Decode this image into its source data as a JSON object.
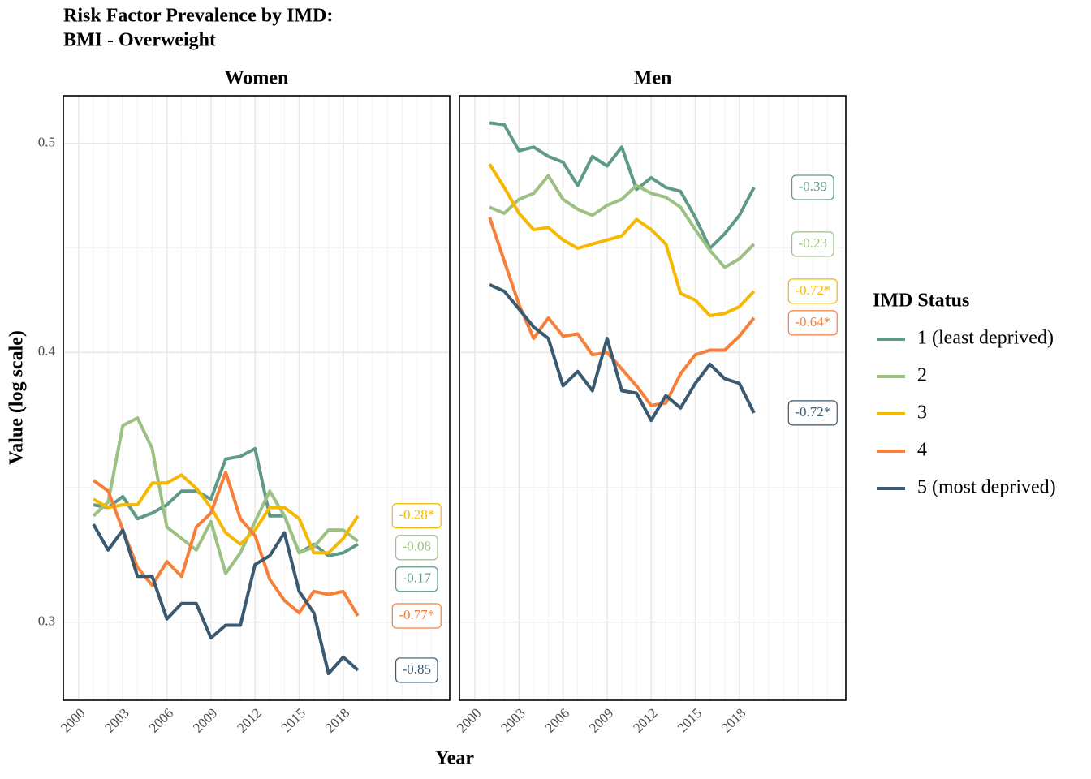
{
  "chart_data": {
    "type": "line",
    "title": "Risk Factor Prevalence by IMD:",
    "subtitle": "BMI - Overweight",
    "x_label": "Year",
    "y_label": "Value (log scale)",
    "facets": [
      "Women",
      "Men"
    ],
    "x": [
      2001,
      2002,
      2003,
      2004,
      2005,
      2006,
      2007,
      2008,
      2009,
      2010,
      2011,
      2012,
      2013,
      2014,
      2015,
      2016,
      2017,
      2018,
      2019
    ],
    "xlim": [
      1998.95,
      2025.25
    ],
    "xticks": [
      2000,
      2003,
      2006,
      2009,
      2012,
      2015,
      2018
    ],
    "ylim": [
      0.276,
      0.526
    ],
    "yticks": [
      0.3,
      0.4,
      0.5
    ],
    "log_y": true,
    "grid": true,
    "legend_title": "IMD Status",
    "legend_position": "right",
    "series": [
      {
        "name": "1 (least deprived)",
        "color": "#5f9a87",
        "values": [
          [
            0.34,
            0.339,
            0.343,
            0.335,
            0.337,
            0.34,
            0.345,
            0.345,
            0.342,
            0.357,
            0.358,
            0.361,
            0.336,
            0.336,
            0.323,
            0.326,
            0.322,
            0.323,
            0.326
          ],
          [
            0.511,
            0.51,
            0.496,
            0.498,
            0.493,
            0.49,
            0.478,
            0.493,
            0.488,
            0.498,
            0.476,
            0.482,
            0.477,
            0.475,
            0.462,
            0.447,
            0.454,
            0.463,
            0.477
          ]
        ],
        "annotations": [
          "-0.17",
          "-0.39"
        ]
      },
      {
        "name": "2",
        "color": "#9dc183",
        "values": [
          [
            0.336,
            0.341,
            0.37,
            0.373,
            0.361,
            0.332,
            0.328,
            0.324,
            0.334,
            0.316,
            0.323,
            0.334,
            0.345,
            0.336,
            0.323,
            0.325,
            0.331,
            0.331,
            0.327
          ],
          [
            0.467,
            0.464,
            0.471,
            0.474,
            0.483,
            0.471,
            0.466,
            0.463,
            0.468,
            0.471,
            0.478,
            0.474,
            0.472,
            0.467,
            0.456,
            0.446,
            0.438,
            0.442,
            0.449
          ]
        ],
        "annotations": [
          "-0.08",
          "-0.23"
        ]
      },
      {
        "name": "3",
        "color": "#f6b800",
        "values": [
          [
            0.342,
            0.339,
            0.34,
            0.34,
            0.348,
            0.348,
            0.351,
            0.346,
            0.339,
            0.33,
            0.326,
            0.331,
            0.339,
            0.339,
            0.335,
            0.323,
            0.323,
            0.328,
            0.336
          ],
          [
            0.489,
            0.477,
            0.464,
            0.456,
            0.457,
            0.451,
            0.447,
            0.449,
            0.451,
            0.453,
            0.461,
            0.456,
            0.449,
            0.426,
            0.423,
            0.416,
            0.417,
            0.42,
            0.427
          ]
        ],
        "annotations": [
          "-0.28*",
          "-0.72*"
        ]
      },
      {
        "name": "4",
        "color": "#f6803a",
        "values": [
          [
            0.349,
            0.345,
            0.331,
            0.318,
            0.312,
            0.32,
            0.315,
            0.332,
            0.337,
            0.352,
            0.335,
            0.329,
            0.314,
            0.307,
            0.303,
            0.31,
            0.309,
            0.31,
            0.302
          ],
          [
            0.462,
            0.441,
            0.421,
            0.406,
            0.415,
            0.407,
            0.408,
            0.399,
            0.4,
            0.393,
            0.386,
            0.378,
            0.379,
            0.391,
            0.399,
            0.401,
            0.401,
            0.407,
            0.415
          ]
        ],
        "annotations": [
          "-0.77*",
          "-0.64*"
        ]
      },
      {
        "name": "5 (most deprived)",
        "color": "#3a5a72",
        "values": [
          [
            0.333,
            0.324,
            0.331,
            0.315,
            0.315,
            0.301,
            0.306,
            0.306,
            0.295,
            0.299,
            0.299,
            0.319,
            0.322,
            0.33,
            0.31,
            0.303,
            0.284,
            0.289,
            0.285
          ],
          [
            0.43,
            0.427,
            0.419,
            0.411,
            0.406,
            0.386,
            0.392,
            0.384,
            0.406,
            0.384,
            0.383,
            0.372,
            0.382,
            0.377,
            0.387,
            0.395,
            0.389,
            0.387,
            0.375
          ]
        ],
        "annotations": [
          "-0.85",
          "-0.72*"
        ]
      }
    ]
  }
}
